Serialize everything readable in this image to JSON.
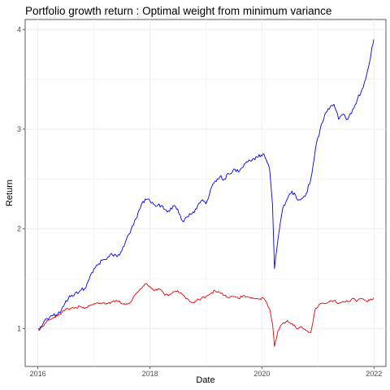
{
  "chart_data": {
    "type": "line",
    "title": "Portfolio growth return : Optimal weight from minimum variance",
    "xlabel": "Date",
    "ylabel": "Return",
    "x_ticks": [
      "2016",
      "2018",
      "2020",
      "2022"
    ],
    "y_ticks": [
      "1",
      "2",
      "3",
      "4"
    ],
    "xlim": [
      "2015-10-10",
      "2022-03-20"
    ],
    "ylim": [
      0.62,
      4.1
    ],
    "grid": true,
    "legend": "none",
    "series": [
      {
        "color": "#0000ff",
        "dates": [
          "2016-01-04",
          "2016-02-01",
          "2016-03-01",
          "2016-04-01",
          "2016-05-01",
          "2016-06-01",
          "2016-07-01",
          "2016-08-01",
          "2016-09-01",
          "2016-10-01",
          "2016-11-01",
          "2016-12-01",
          "2017-01-01",
          "2017-02-01",
          "2017-03-01",
          "2017-04-01",
          "2017-05-01",
          "2017-06-01",
          "2017-07-01",
          "2017-08-01",
          "2017-09-01",
          "2017-10-01",
          "2017-11-01",
          "2017-12-01",
          "2018-01-01",
          "2018-02-01",
          "2018-03-01",
          "2018-04-01",
          "2018-05-01",
          "2018-06-01",
          "2018-07-01",
          "2018-08-01",
          "2018-09-01",
          "2018-10-01",
          "2018-11-01",
          "2018-12-01",
          "2019-01-01",
          "2019-02-01",
          "2019-03-01",
          "2019-04-01",
          "2019-05-01",
          "2019-06-01",
          "2019-07-01",
          "2019-08-01",
          "2019-09-01",
          "2019-10-01",
          "2019-11-01",
          "2019-12-01",
          "2020-01-15",
          "2020-02-20",
          "2020-03-10",
          "2020-03-23",
          "2020-04-15",
          "2020-05-15",
          "2020-06-15",
          "2020-07-15",
          "2020-08-15",
          "2020-09-15",
          "2020-10-15",
          "2020-11-15",
          "2020-12-15",
          "2021-01-15",
          "2021-02-15",
          "2021-03-15",
          "2021-04-15",
          "2021-05-15",
          "2021-06-15",
          "2021-07-15",
          "2021-08-15",
          "2021-09-15",
          "2021-10-15",
          "2021-11-15",
          "2021-12-31"
        ],
        "values": [
          1.0,
          1.04,
          1.1,
          1.13,
          1.14,
          1.18,
          1.28,
          1.32,
          1.36,
          1.38,
          1.4,
          1.5,
          1.6,
          1.65,
          1.69,
          1.72,
          1.74,
          1.72,
          1.78,
          1.9,
          2.0,
          2.1,
          2.22,
          2.3,
          2.28,
          2.24,
          2.25,
          2.2,
          2.18,
          2.23,
          2.2,
          2.08,
          2.12,
          2.15,
          2.2,
          2.28,
          2.25,
          2.4,
          2.48,
          2.52,
          2.5,
          2.55,
          2.6,
          2.57,
          2.62,
          2.67,
          2.7,
          2.72,
          2.75,
          2.6,
          2.25,
          1.6,
          1.9,
          2.2,
          2.3,
          2.38,
          2.3,
          2.3,
          2.35,
          2.5,
          2.8,
          3.0,
          3.15,
          3.2,
          3.25,
          3.1,
          3.15,
          3.1,
          3.2,
          3.3,
          3.4,
          3.55,
          3.9
        ]
      },
      {
        "color": "#ee0000",
        "dates": [
          "2016-01-04",
          "2016-02-01",
          "2016-03-01",
          "2016-04-01",
          "2016-05-01",
          "2016-06-01",
          "2016-07-01",
          "2016-08-01",
          "2016-09-01",
          "2016-10-01",
          "2016-11-01",
          "2016-12-01",
          "2017-01-01",
          "2017-02-01",
          "2017-03-01",
          "2017-04-01",
          "2017-05-01",
          "2017-06-01",
          "2017-07-01",
          "2017-08-01",
          "2017-09-01",
          "2017-10-01",
          "2017-11-01",
          "2017-12-01",
          "2018-01-01",
          "2018-02-01",
          "2018-03-01",
          "2018-04-01",
          "2018-05-01",
          "2018-06-01",
          "2018-07-01",
          "2018-08-01",
          "2018-09-01",
          "2018-10-01",
          "2018-11-01",
          "2018-12-01",
          "2019-01-01",
          "2019-02-01",
          "2019-03-01",
          "2019-04-01",
          "2019-05-01",
          "2019-06-01",
          "2019-07-01",
          "2019-08-01",
          "2019-09-01",
          "2019-10-01",
          "2019-11-01",
          "2019-12-01",
          "2020-01-15",
          "2020-02-20",
          "2020-03-10",
          "2020-03-23",
          "2020-04-15",
          "2020-05-15",
          "2020-06-15",
          "2020-07-15",
          "2020-08-15",
          "2020-09-15",
          "2020-10-15",
          "2020-11-15",
          "2020-12-15",
          "2021-01-15",
          "2021-02-15",
          "2021-03-15",
          "2021-04-15",
          "2021-05-15",
          "2021-06-15",
          "2021-07-15",
          "2021-08-15",
          "2021-09-15",
          "2021-10-15",
          "2021-11-15",
          "2021-12-31"
        ],
        "values": [
          0.98,
          1.02,
          1.08,
          1.1,
          1.13,
          1.15,
          1.2,
          1.2,
          1.21,
          1.22,
          1.2,
          1.23,
          1.25,
          1.25,
          1.26,
          1.25,
          1.27,
          1.28,
          1.25,
          1.25,
          1.27,
          1.35,
          1.4,
          1.45,
          1.42,
          1.38,
          1.4,
          1.35,
          1.33,
          1.37,
          1.38,
          1.34,
          1.3,
          1.26,
          1.28,
          1.3,
          1.32,
          1.35,
          1.38,
          1.36,
          1.33,
          1.31,
          1.32,
          1.3,
          1.33,
          1.32,
          1.31,
          1.3,
          1.3,
          1.2,
          1.05,
          0.82,
          0.98,
          1.05,
          1.08,
          1.05,
          1.0,
          1.02,
          0.98,
          0.96,
          1.2,
          1.25,
          1.25,
          1.27,
          1.28,
          1.25,
          1.27,
          1.27,
          1.3,
          1.28,
          1.3,
          1.27,
          1.31
        ]
      }
    ]
  }
}
